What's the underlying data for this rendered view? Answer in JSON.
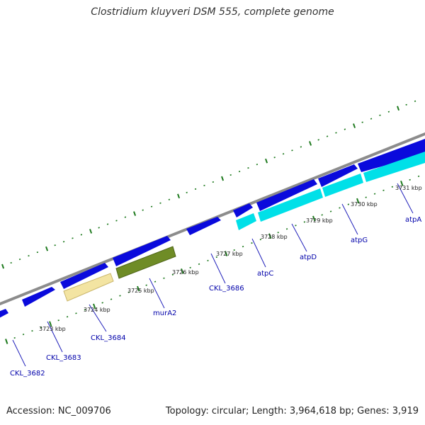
{
  "title": "Clostridium kluyveri DSM 555, complete genome",
  "footer": {
    "accession": "Accession: NC_009706",
    "summary": "Topology: circular; Length: 3,964,618 bp; Genes: 3,919"
  },
  "colors": {
    "backbone": "#8c8c8c",
    "gene_forward": "#0a0adc",
    "tick": "#1e7a1e",
    "label": "#0000aa",
    "leader_line": "#2222bb",
    "cyan_gene": "#00e0e8",
    "tan_gene": "#f3e4a2",
    "olive_gene": "#6f8c26"
  },
  "kbp_labels": [
    "3723 kbp",
    "3724 kbp",
    "3725 kbp",
    "3726 kbp",
    "3727 kbp",
    "3728 kbp",
    "3729 kbp",
    "3730 kbp",
    "3731 kbp"
  ],
  "gene_labels": [
    "CKL_3682",
    "CKL_3683",
    "CKL_3684",
    "murA2",
    "CKL_3686",
    "atpC",
    "atpD",
    "atpG",
    "atpA"
  ]
}
